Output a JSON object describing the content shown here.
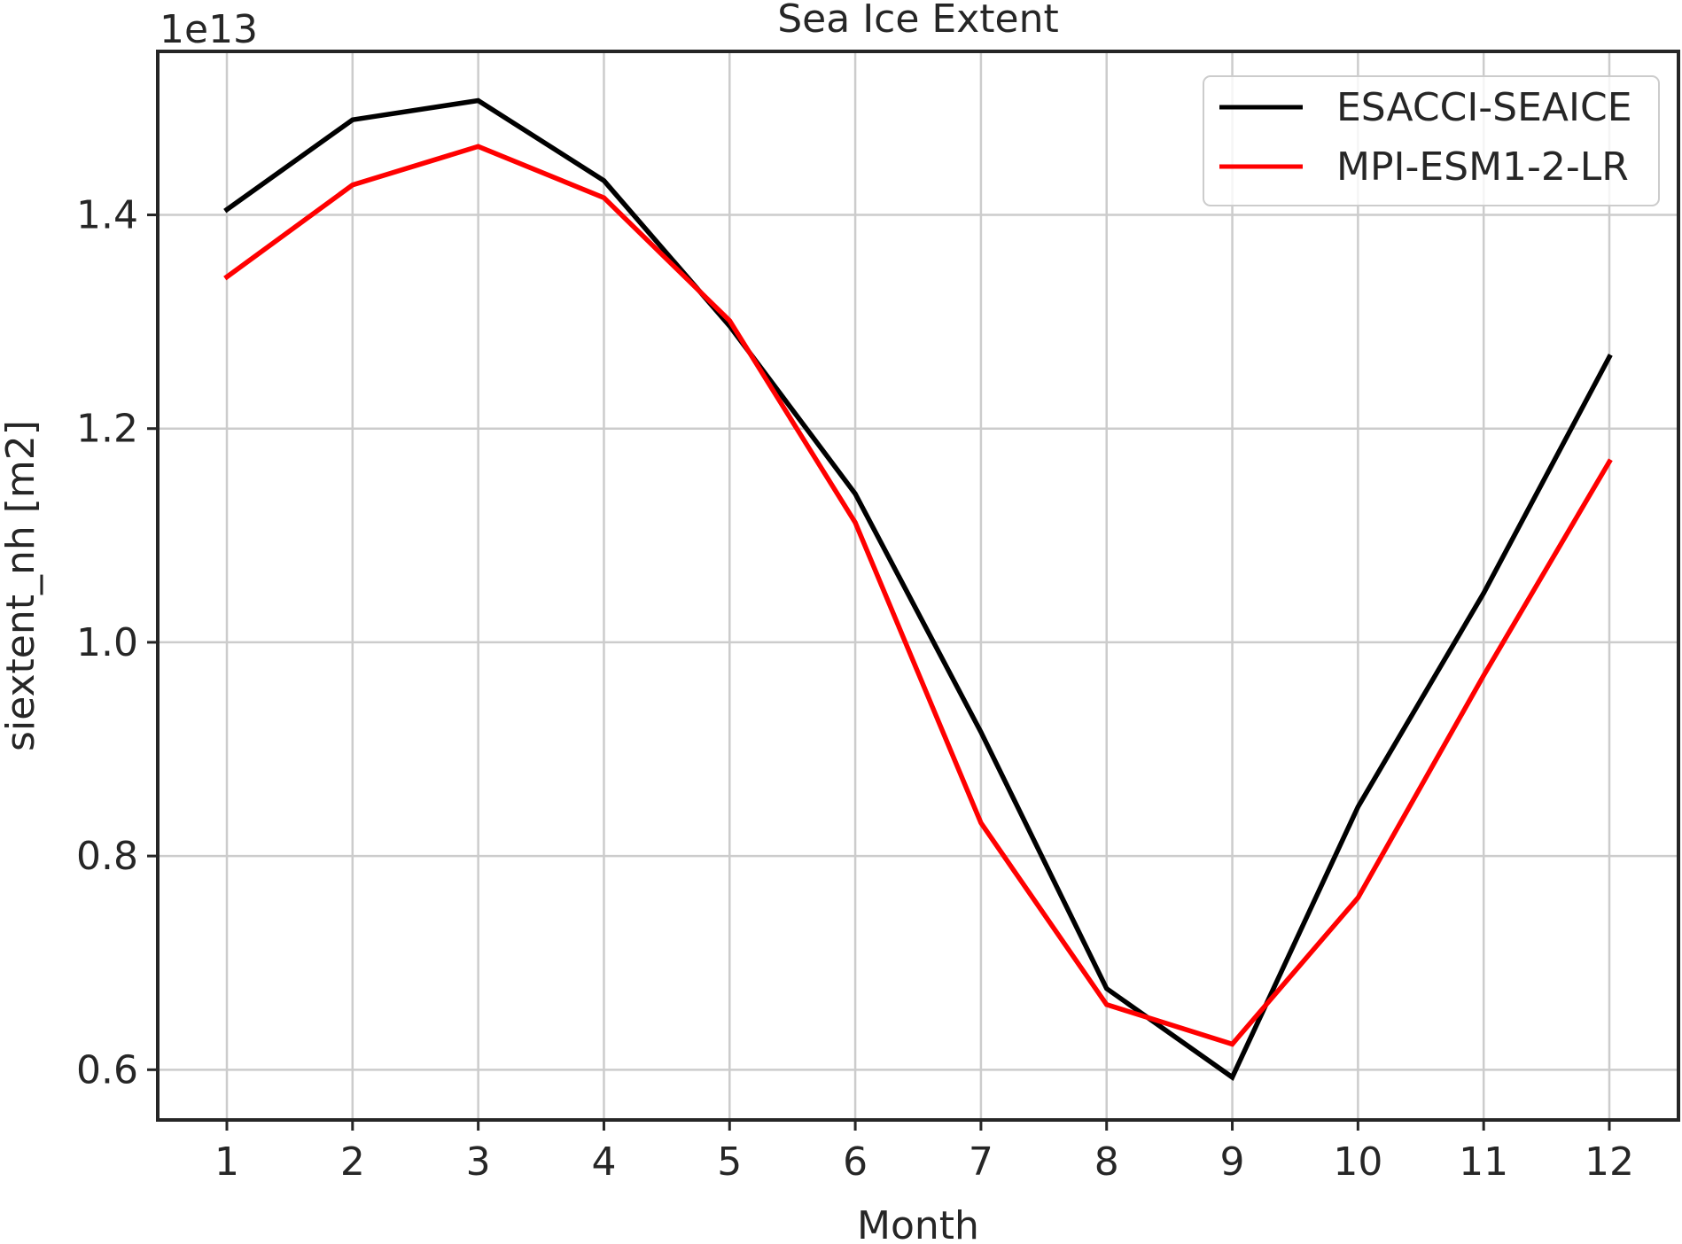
{
  "chart_data": {
    "type": "line",
    "title": "Sea Ice Extent",
    "xlabel": "Month",
    "ylabel": "siextent_nh [m2]",
    "y_offset_label": "1e13",
    "x": [
      1,
      2,
      3,
      4,
      5,
      6,
      7,
      8,
      9,
      10,
      11,
      12
    ],
    "x_ticks": [
      "1",
      "2",
      "3",
      "4",
      "5",
      "6",
      "7",
      "8",
      "9",
      "10",
      "11",
      "12"
    ],
    "y_ticks": [
      "0.6",
      "0.8",
      "1.0",
      "1.2",
      "1.4"
    ],
    "y_tick_values": [
      0.6,
      0.8,
      1.0,
      1.2,
      1.4
    ],
    "xlim": [
      0.45,
      12.55
    ],
    "ylim": [
      0.553,
      1.553
    ],
    "y_unit_multiplier": 10000000000000.0,
    "grid": true,
    "legend_position": "top-right",
    "series": [
      {
        "name": "ESACCI-SEAICE",
        "color": "#000000",
        "values": [
          1.405,
          1.489,
          1.507,
          1.432,
          1.296,
          1.139,
          0.916,
          0.676,
          0.593,
          0.846,
          1.046,
          1.267
        ]
      },
      {
        "name": "MPI-ESM1-2-LR",
        "color": "#ff0000",
        "values": [
          1.342,
          1.428,
          1.464,
          1.416,
          1.301,
          1.112,
          0.831,
          0.661,
          0.624,
          0.761,
          0.969,
          1.169
        ]
      }
    ]
  }
}
